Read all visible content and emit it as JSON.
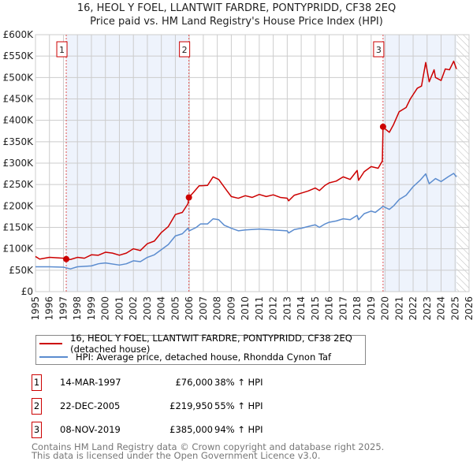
{
  "chart_data": {
    "type": "line",
    "title": "16, HEOL Y FOEL, LLANTWIT FARDRE, PONTYPRIDD, CF38 2EQ",
    "subtitle": "Price paid vs. HM Land Registry's House Price Index (HPI)",
    "xlim": [
      1995,
      2026
    ],
    "ylim": [
      0,
      600000
    ],
    "x_ticks": [
      "1995",
      "1996",
      "1997",
      "1998",
      "1999",
      "2000",
      "2001",
      "2002",
      "2003",
      "2004",
      "2005",
      "2006",
      "2007",
      "2008",
      "2009",
      "2010",
      "2011",
      "2012",
      "2013",
      "2014",
      "2015",
      "2016",
      "2017",
      "2018",
      "2019",
      "2020",
      "2021",
      "2022",
      "2023",
      "2024",
      "2025",
      "2026"
    ],
    "y_ticks": [
      {
        "v": 0,
        "label": "£0"
      },
      {
        "v": 50000,
        "label": "£50K"
      },
      {
        "v": 100000,
        "label": "£100K"
      },
      {
        "v": 150000,
        "label": "£150K"
      },
      {
        "v": 200000,
        "label": "£200K"
      },
      {
        "v": 250000,
        "label": "£250K"
      },
      {
        "v": 300000,
        "label": "£300K"
      },
      {
        "v": 350000,
        "label": "£350K"
      },
      {
        "v": 400000,
        "label": "£400K"
      },
      {
        "v": 450000,
        "label": "£450K"
      },
      {
        "v": 500000,
        "label": "£500K"
      },
      {
        "v": 550000,
        "label": "£550K"
      },
      {
        "v": 600000,
        "label": "£600K"
      }
    ],
    "grid": true,
    "series": [
      {
        "name": "16, HEOL Y FOEL, LLANTWIT FARDRE, PONTYPRIDD, CF38 2EQ (detached house)",
        "color": "#cc0000",
        "x": [
          1995,
          1995.3,
          1996,
          1997,
          1997.2,
          1997.5,
          1998,
          1998.5,
          1999,
          1999.5,
          2000,
          2000.5,
          2001,
          2001.5,
          2002,
          2002.5,
          2003,
          2003.5,
          2004,
          2004.5,
          2005,
          2005.5,
          2005.9,
          2005.97,
          2006.3,
          2006.7,
          2007.3,
          2007.7,
          2008.1,
          2008.7,
          2009,
          2009.5,
          2010,
          2010.5,
          2011,
          2011.5,
          2012,
          2012.5,
          2013,
          2013.1,
          2013.5,
          2014,
          2014.5,
          2015,
          2015.3,
          2015.7,
          2016,
          2016.5,
          2017,
          2017.5,
          2018,
          2018.1,
          2018.5,
          2019,
          2019.5,
          2019.8,
          2019.85,
          2020,
          2020.3,
          2020.6,
          2021,
          2021.5,
          2021.8,
          2022.3,
          2022.6,
          2022.9,
          2023.15,
          2023.5,
          2023.6,
          2024,
          2024.3,
          2024.6,
          2024.9,
          2025.1
        ],
        "values": [
          82000,
          76000,
          80000,
          78000,
          76000,
          75000,
          80000,
          78000,
          86000,
          85000,
          92000,
          90000,
          85000,
          90000,
          100000,
          96000,
          112000,
          118000,
          138000,
          152000,
          180000,
          185000,
          205000,
          219950,
          232000,
          247000,
          248000,
          268000,
          262000,
          235000,
          222000,
          218000,
          224000,
          220000,
          227000,
          222000,
          226000,
          220000,
          218000,
          212000,
          225000,
          230000,
          235000,
          242000,
          236000,
          248000,
          254000,
          258000,
          268000,
          262000,
          283000,
          260000,
          280000,
          292000,
          288000,
          305000,
          385000,
          380000,
          372000,
          390000,
          420000,
          430000,
          450000,
          475000,
          480000,
          535000,
          490000,
          518000,
          500000,
          493000,
          520000,
          518000,
          538000,
          520000
        ]
      },
      {
        "name": "HPI: Average price, detached house, Rhondda Cynon Taf",
        "color": "#5b8ccf",
        "x": [
          1995,
          1996,
          1997,
          1997.5,
          1998,
          1999,
          1999.5,
          2000,
          2001,
          2001.5,
          2002,
          2002.5,
          2003,
          2003.5,
          2004,
          2004.5,
          2005,
          2005.5,
          2005.9,
          2006,
          2006.5,
          2006.8,
          2007.3,
          2007.7,
          2008.1,
          2008.5,
          2009,
          2009.5,
          2010,
          2011,
          2012,
          2013,
          2013.1,
          2013.5,
          2014,
          2014.5,
          2015,
          2015.3,
          2015.7,
          2016,
          2016.5,
          2017,
          2017.5,
          2018,
          2018.1,
          2018.5,
          2019,
          2019.3,
          2019.85,
          2020.3,
          2020.6,
          2021,
          2021.5,
          2022,
          2022.5,
          2022.9,
          2023.15,
          2023.6,
          2024,
          2024.5,
          2024.9,
          2025.1
        ],
        "values": [
          58000,
          58000,
          57000,
          53000,
          58000,
          60000,
          65000,
          67000,
          62000,
          65000,
          72000,
          70000,
          80000,
          86000,
          98000,
          110000,
          130000,
          135000,
          148000,
          142000,
          150000,
          158000,
          158000,
          170000,
          168000,
          155000,
          148000,
          142000,
          144000,
          146000,
          144000,
          142000,
          137000,
          145000,
          148000,
          152000,
          156000,
          150000,
          158000,
          162000,
          165000,
          170000,
          168000,
          178000,
          168000,
          182000,
          188000,
          185000,
          199000,
          192000,
          200000,
          215000,
          225000,
          245000,
          260000,
          275000,
          252000,
          264000,
          257000,
          268000,
          276000,
          268000
        ]
      }
    ],
    "sales": [
      {
        "n": "1",
        "x": 1997.2,
        "price": 76000,
        "date": "14-MAR-1997",
        "price_label": "£76,000",
        "hpi": "38% ↑ HPI"
      },
      {
        "n": "2",
        "x": 2005.97,
        "price": 219950,
        "date": "22-DEC-2005",
        "price_label": "£219,950",
        "hpi": "55% ↑ HPI"
      },
      {
        "n": "3",
        "x": 2019.85,
        "price": 385000,
        "date": "08-NOV-2019",
        "price_label": "£385,000",
        "hpi": "94% ↑ HPI"
      }
    ],
    "shaded_ranges": [
      [
        1997.2,
        2005.97
      ],
      [
        2019.85,
        2025.1
      ]
    ],
    "forecast_hatch_from": 2025.1
  },
  "legend": {
    "red": "16, HEOL Y FOEL, LLANTWIT FARDRE, PONTYPRIDD, CF38 2EQ (detached house)",
    "blue": "HPI: Average price, detached house, Rhondda Cynon Taf"
  },
  "footer": {
    "line1": "Contains HM Land Registry data © Crown copyright and database right 2025.",
    "line2": "This data is licensed under the Open Government Licence v3.0."
  }
}
